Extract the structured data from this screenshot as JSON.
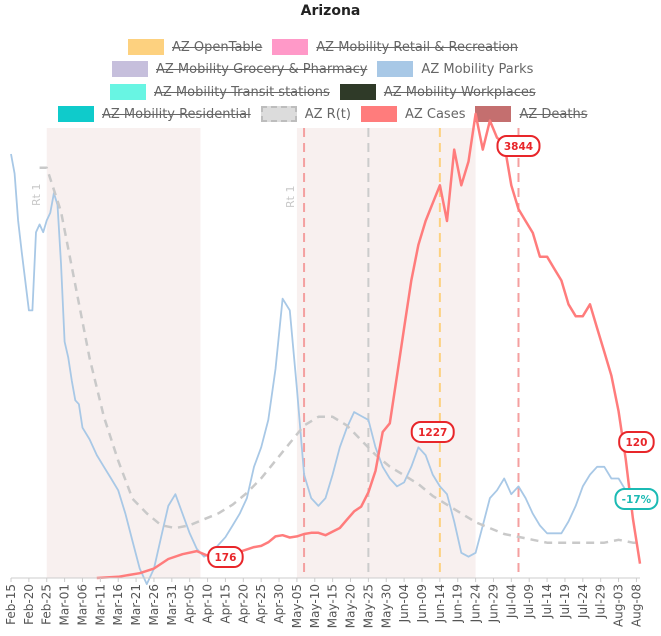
{
  "chart_data": {
    "type": "line",
    "title": "Arizona",
    "legend": [
      {
        "name": "AZ OpenTable",
        "color": "#fdd17f",
        "visible": false
      },
      {
        "name": "AZ Mobility Retail & Recreation",
        "color": "#ff99c8",
        "visible": false
      },
      {
        "name": "AZ Mobility Grocery & Pharmacy",
        "color": "#c6bfdc",
        "visible": false
      },
      {
        "name": "AZ Mobility Parks",
        "color": "#a8c8e6",
        "visible": true
      },
      {
        "name": "AZ Mobility Transit stations",
        "color": "#68f5e3",
        "visible": false
      },
      {
        "name": "AZ Mobility Workplaces",
        "color": "#2f3a28",
        "visible": false
      },
      {
        "name": "AZ Mobility Residential",
        "color": "#0fcbcb",
        "visible": false
      },
      {
        "name": "AZ R(t)",
        "color": "#c9c9c9",
        "visible": true,
        "dashed": true
      },
      {
        "name": "AZ Cases",
        "color": "#ff7c7c",
        "visible": true
      },
      {
        "name": "AZ Deaths",
        "color": "#c46f6f",
        "visible": false
      }
    ],
    "x_tick_labels": [
      "Feb-15",
      "Feb-20",
      "Feb-25",
      "Mar-01",
      "Mar-06",
      "Mar-11",
      "Mar-16",
      "Mar-21",
      "Mar-26",
      "Mar-31",
      "Apr-05",
      "Apr-10",
      "Apr-15",
      "Apr-20",
      "Apr-25",
      "Apr-30",
      "May-05",
      "May-10",
      "May-15",
      "May-20",
      "May-25",
      "May-30",
      "Jun-04",
      "Jun-09",
      "Jun-14",
      "Jun-19",
      "Jun-24",
      "Jun-29",
      "Jul-04",
      "Jul-09",
      "Jul-14",
      "Jul-19",
      "Jul-24",
      "Jul-29",
      "Aug-03",
      "Aug-08"
    ],
    "shaded_periods": [
      {
        "start": "Feb-25",
        "end": "Apr-08"
      },
      {
        "start": "May-05",
        "end": "Jun-24"
      }
    ],
    "vertical_markers": [
      {
        "at": "May-07",
        "color": "#f4a0a0",
        "dashed": true
      },
      {
        "at": "May-25",
        "color": "#cccccc",
        "dashed": true
      },
      {
        "at": "Jun-14",
        "color": "#fdd17f",
        "dashed": true
      },
      {
        "at": "Jul-06",
        "color": "#f4a0a0",
        "dashed": true
      }
    ],
    "annotations": [
      {
        "text": "Rt 1",
        "at": "Feb-22"
      },
      {
        "text": "Rt 1",
        "at": "May-03"
      }
    ],
    "data_labels": [
      {
        "text": "3844",
        "series": "AZ Cases",
        "at": "Jul-06",
        "color": "#e8262a"
      },
      {
        "text": "1227",
        "series": "AZ Cases",
        "at": "Jun-12",
        "color": "#e8262a"
      },
      {
        "text": "176",
        "series": "AZ Cases",
        "at": "Apr-15",
        "color": "#e8262a"
      },
      {
        "text": "120",
        "series": "AZ Cases",
        "at": "Aug-08",
        "color": "#e8262a"
      },
      {
        "text": "-17%",
        "series": "AZ Mobility Parks",
        "at": "Aug-08",
        "color": "#1bbab4"
      }
    ],
    "series": [
      {
        "name": "AZ Mobility Parks",
        "color": "#a8c8e6",
        "x": [
          0,
          1,
          2,
          3,
          5,
          6,
          7,
          8,
          9,
          10,
          11,
          12,
          13,
          14,
          15,
          16,
          17,
          18,
          19,
          20,
          22,
          24,
          26,
          28,
          30,
          32,
          34,
          36,
          38,
          40,
          42,
          44,
          46,
          48,
          50,
          52,
          54,
          56,
          58,
          60,
          62,
          64,
          66,
          68,
          70,
          72,
          74,
          76,
          78,
          80,
          82,
          84,
          86,
          88,
          90,
          92,
          94,
          96,
          98,
          100,
          102,
          104,
          106,
          108,
          110,
          112,
          114,
          116,
          118,
          120,
          122,
          124,
          126,
          128,
          130,
          132,
          134,
          136,
          138,
          140,
          142,
          144,
          146,
          148,
          150,
          152,
          154,
          156,
          158,
          160,
          162,
          164,
          166,
          168,
          170,
          172,
          174,
          176
        ],
        "y": [
          1.0,
          0.95,
          0.83,
          0.75,
          0.6,
          0.6,
          0.8,
          0.82,
          0.8,
          0.83,
          0.85,
          0.9,
          0.87,
          0.72,
          0.52,
          0.48,
          0.42,
          0.37,
          0.36,
          0.3,
          0.27,
          0.23,
          0.2,
          0.17,
          0.14,
          0.08,
          0.01,
          -0.06,
          -0.1,
          -0.06,
          0.02,
          0.1,
          0.13,
          0.08,
          0.03,
          -0.01,
          -0.03,
          -0.02,
          0.0,
          0.02,
          0.05,
          0.08,
          0.12,
          0.2,
          0.25,
          0.32,
          0.45,
          0.63,
          0.6,
          0.4,
          0.18,
          0.12,
          0.1,
          0.12,
          0.18,
          0.25,
          0.3,
          0.34,
          0.33,
          0.32,
          0.25,
          0.2,
          0.17,
          0.15,
          0.16,
          0.2,
          0.25,
          0.23,
          0.18,
          0.15,
          0.13,
          0.06,
          -0.02,
          -0.03,
          -0.02,
          0.05,
          0.12,
          0.14,
          0.17,
          0.13,
          0.15,
          0.12,
          0.08,
          0.05,
          0.03,
          0.03,
          0.03,
          0.06,
          0.1,
          0.15,
          0.18,
          0.2,
          0.2,
          0.17,
          0.17,
          0.14,
          0.13,
          0.13
        ]
      },
      {
        "name": "AZ R(t)",
        "color": "#c9c9c9",
        "dashed": true,
        "x": [
          8,
          10,
          14,
          18,
          22,
          26,
          30,
          34,
          38,
          42,
          46,
          50,
          54,
          58,
          62,
          66,
          70,
          74,
          78,
          82,
          86,
          90,
          94,
          98,
          102,
          106,
          110,
          114,
          118,
          122,
          126,
          130,
          134,
          138,
          142,
          146,
          150,
          154,
          158,
          162,
          166,
          170,
          174,
          176
        ],
        "y": [
          2.1,
          2.1,
          1.95,
          1.7,
          1.45,
          1.25,
          1.1,
          0.97,
          0.92,
          0.88,
          0.87,
          0.88,
          0.9,
          0.92,
          0.95,
          0.99,
          1.04,
          1.1,
          1.16,
          1.22,
          1.25,
          1.25,
          1.22,
          1.17,
          1.12,
          1.08,
          1.05,
          1.02,
          0.98,
          0.95,
          0.92,
          0.89,
          0.87,
          0.85,
          0.84,
          0.83,
          0.82,
          0.82,
          0.82,
          0.82,
          0.82,
          0.83,
          0.82,
          0.82
        ]
      },
      {
        "name": "AZ Cases",
        "color": "#ff7c7c",
        "x": [
          24,
          30,
          36,
          40,
          44,
          48,
          52,
          56,
          58,
          60,
          62,
          64,
          66,
          68,
          70,
          72,
          74,
          76,
          78,
          80,
          82,
          84,
          86,
          88,
          90,
          92,
          94,
          96,
          98,
          100,
          102,
          104,
          106,
          108,
          110,
          112,
          114,
          116,
          118,
          120,
          122,
          124,
          126,
          128,
          130,
          132,
          134,
          136,
          138,
          140,
          142,
          144,
          146,
          148,
          150,
          152,
          154,
          156,
          158,
          160,
          162,
          164,
          166,
          168,
          170,
          172,
          174,
          176
        ],
        "y": [
          0,
          10,
          40,
          80,
          160,
          200,
          226,
          176,
          185,
          210,
          215,
          220,
          240,
          260,
          270,
          300,
          350,
          360,
          340,
          350,
          370,
          380,
          380,
          360,
          390,
          420,
          490,
          560,
          600,
          720,
          900,
          1227,
          1300,
          1700,
          2100,
          2500,
          2800,
          3000,
          3150,
          3300,
          3000,
          3600,
          3300,
          3500,
          3900,
          3600,
          3844,
          3700,
          3650,
          3300,
          3100,
          3000,
          2900,
          2700,
          2700,
          2600,
          2500,
          2300,
          2200,
          2200,
          2300,
          2100,
          1900,
          1700,
          1400,
          1000,
          500,
          120
        ]
      }
    ]
  }
}
